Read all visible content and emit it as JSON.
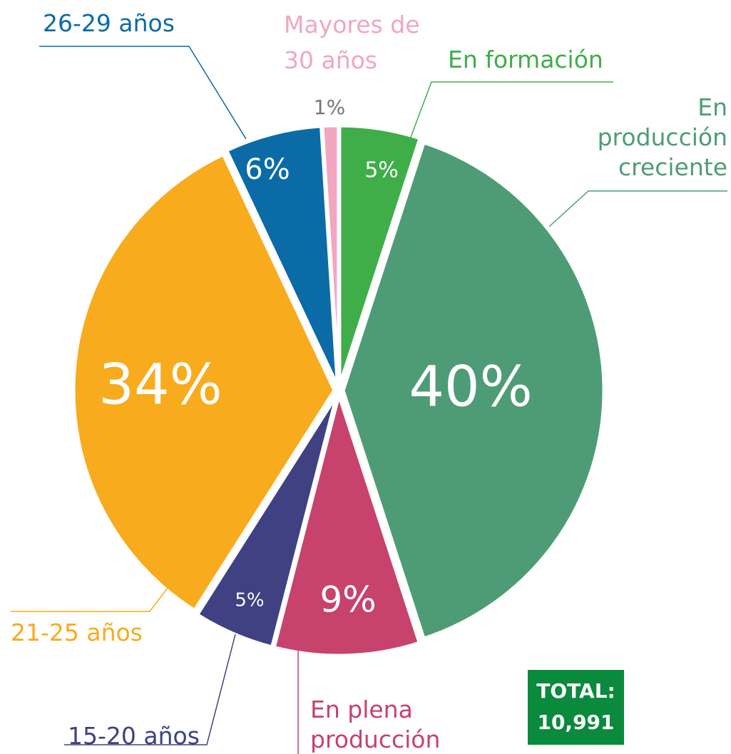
{
  "chart_data": {
    "type": "pie",
    "labels": [
      "En formación",
      "En producción creciente",
      "En plena producción",
      "15-20 años",
      "21-25 años",
      "26-29 años",
      "Mayores de 30 años"
    ],
    "values": [
      5,
      40,
      9,
      5,
      34,
      6,
      1
    ],
    "value_labels": [
      "5%",
      "40%",
      "9%",
      "5%",
      "34%",
      "6%",
      "1%"
    ],
    "colors": [
      "#3fae49",
      "#4e9c76",
      "#c7426c",
      "#3f4183",
      "#f8ab1c",
      "#0b6ba6",
      "#f2a6c0"
    ],
    "total_label": "TOTAL:",
    "total": {
      "value": 10991,
      "label": "10,991"
    }
  }
}
